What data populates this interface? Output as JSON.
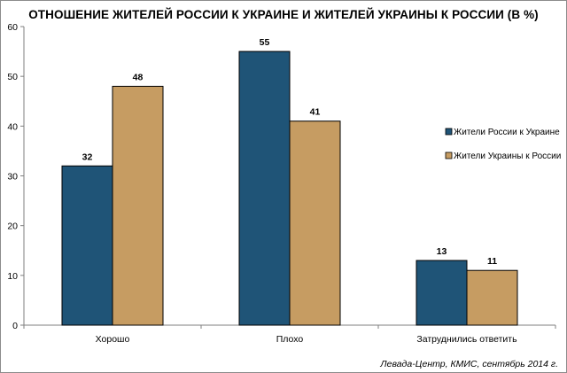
{
  "chart_data": {
    "type": "bar",
    "title": "ОТНОШЕНИЕ ЖИТЕЛЕЙ РОССИИ К УКРАИНЕ И ЖИТЕЛЕЙ УКРАИНЫ К РОССИИ (В %)",
    "categories": [
      "Хорошо",
      "Плохо",
      "Затруднились ответить"
    ],
    "series": [
      {
        "name": "Жители России к Украине",
        "values": [
          32,
          55,
          13
        ],
        "color": "#1f5477"
      },
      {
        "name": "Жители Украины к России",
        "values": [
          48,
          41,
          11
        ],
        "color": "#c69c62"
      }
    ],
    "ylim": [
      0,
      60
    ],
    "yticks": [
      0,
      10,
      20,
      30,
      40,
      50,
      60
    ],
    "grid": false,
    "legend": "right",
    "show_value_labels": true
  },
  "source": "Левада-Центр, КМИС, сентябрь 2014 г."
}
